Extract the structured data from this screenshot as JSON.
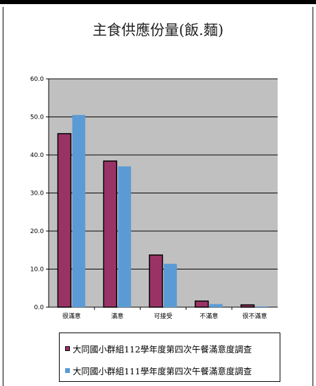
{
  "chart_data": {
    "type": "bar",
    "title": "主食供應份量(飯.麵)",
    "categories": [
      "很滿意",
      "滿意",
      "可接受",
      "不滿意",
      "很不滿意"
    ],
    "series": [
      {
        "name": "大同國小群組112學年度第四次午餐滿意度調查",
        "values": [
          45.6,
          38.4,
          13.7,
          1.6,
          0.6
        ],
        "color": "#993366"
      },
      {
        "name": "大同國小群組111學年度第四次午餐滿意度調查",
        "values": [
          50.5,
          37.0,
          11.4,
          0.8,
          0.2
        ],
        "color": "#5b9bd5"
      }
    ],
    "ylim": [
      0,
      60
    ],
    "yticks": [
      "0.0",
      "10.0",
      "20.0",
      "30.0",
      "40.0",
      "50.0",
      "60.0"
    ],
    "plot_background": "#c0c0c0",
    "grid": true,
    "legend_position": "bottom"
  }
}
